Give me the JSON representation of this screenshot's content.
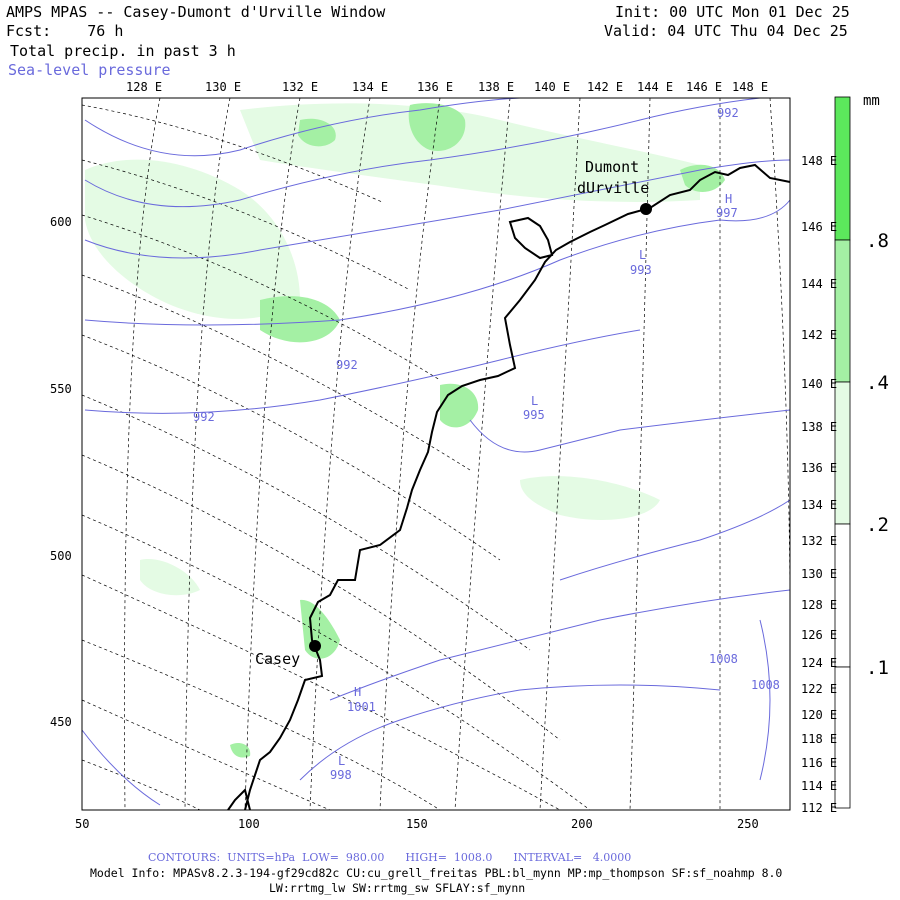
{
  "header": {
    "title": "AMPS MPAS -- Casey-Dumont d'Urville Window",
    "forecast": "Fcst:    76 h",
    "field": "Total precip. in past 3 h",
    "overlay": "Sea-level pressure",
    "init": "Init: 00 UTC Mon 01 Dec 25",
    "valid": "Valid: 04 UTC Thu 04 Dec 25"
  },
  "top_lon_labels": [
    "128 E",
    "130 E",
    "132 E",
    "134 E",
    "136 E",
    "138 E",
    "140 E",
    "142 E",
    "144 E",
    "146 E",
    "148 E"
  ],
  "right_lon_labels": [
    "148 E",
    "146 E",
    "144 E",
    "142 E",
    "140 E",
    "138 E",
    "136 E",
    "134 E",
    "132 E",
    "130 E",
    "128 E",
    "126 E",
    "124 E",
    "122 E",
    "120 E",
    "118 E",
    "116 E",
    "114 E",
    "112 E"
  ],
  "left_axis": [
    "600",
    "550",
    "500",
    "450"
  ],
  "bottom_axis": [
    "50",
    "100",
    "150",
    "200",
    "250"
  ],
  "stations": [
    {
      "name_line1": "Dumont",
      "name_line2": "dUrville"
    },
    {
      "name_line1": "Casey",
      "name_line2": ""
    }
  ],
  "pressure_labels": [
    {
      "kind": "",
      "value": "992"
    },
    {
      "kind": "H",
      "value": "997"
    },
    {
      "kind": "L",
      "value": "993"
    },
    {
      "kind": "",
      "value": "992"
    },
    {
      "kind": "",
      "value": "992"
    },
    {
      "kind": "L",
      "value": "995"
    },
    {
      "kind": "",
      "value": "1008"
    },
    {
      "kind": "",
      "value": "1008"
    },
    {
      "kind": "H",
      "value": "1001"
    },
    {
      "kind": "L",
      "value": "998"
    }
  ],
  "colorbar": {
    "unit": "mm",
    "labels": [
      ".8",
      ".4",
      ".2",
      ".1"
    ],
    "colors": {
      "c08": "#5ce85c",
      "c04": "#a4f0a4",
      "c02": "#e4fbe4",
      "c01": "#ffffff"
    }
  },
  "footer": {
    "contours": "CONTOURS:  UNITS=hPa  LOW=  980.00      HIGH=  1008.0      INTERVAL=   4.0000",
    "model_info": "Model Info: MPASv8.2.3-194-gf29cd82c CU:cu_grell_freitas PBL:bl_mynn MP:mp_thompson SF:sf_noahmp 8.0",
    "model_info2": "LW:rrtmg_lw SW:rrtmg_sw SFLAY:sf_mynn"
  },
  "colors": {
    "isobar": "#6a6adc",
    "grid": "#000000",
    "coast": "#000000"
  }
}
